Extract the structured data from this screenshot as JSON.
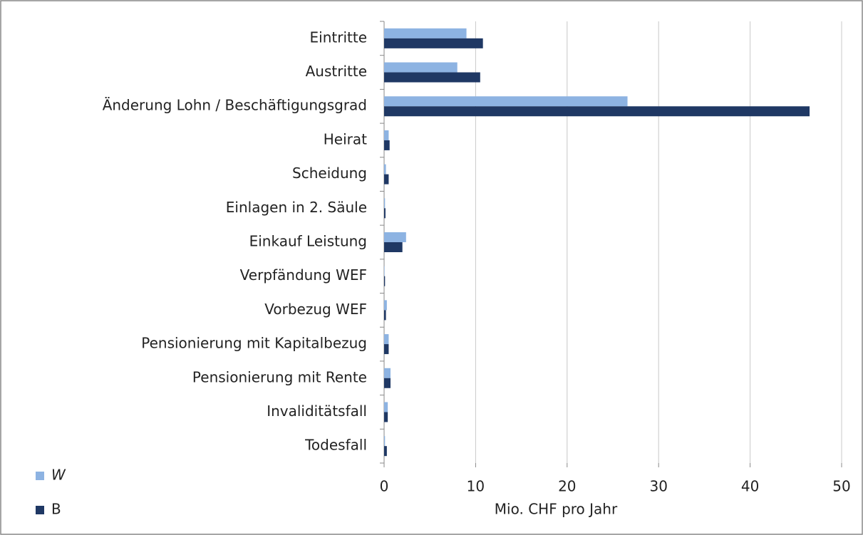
{
  "chart_data": {
    "type": "hbar",
    "categories": [
      "Eintritte",
      "Austritte",
      "Änderung Lohn / Beschäftigungsgrad",
      "Heirat",
      "Scheidung",
      "Einlagen in 2. Säule",
      "Einkauf Leistung",
      "Verpfändung WEF",
      "Vorbezug WEF",
      "Pensionierung mit Kapitalbezug",
      "Pensionierung mit Rente",
      "Invaliditätsfall",
      "Todesfall"
    ],
    "series": [
      {
        "name": "W",
        "color": "#8db3e2",
        "values": [
          9.0,
          8.0,
          26.6,
          0.5,
          0.2,
          0.1,
          2.4,
          0.05,
          0.3,
          0.5,
          0.7,
          0.4,
          0.1
        ]
      },
      {
        "name": "B",
        "color": "#1f3864",
        "values": [
          10.8,
          10.5,
          46.5,
          0.6,
          0.5,
          0.15,
          2.0,
          0.1,
          0.2,
          0.5,
          0.7,
          0.4,
          0.3
        ]
      }
    ],
    "x_label": "Mio. CHF pro Jahr",
    "xlim": [
      0,
      50
    ],
    "xticks": [
      0,
      10,
      20,
      30,
      40,
      50
    ],
    "grid": true,
    "legend": "bottom-left"
  }
}
